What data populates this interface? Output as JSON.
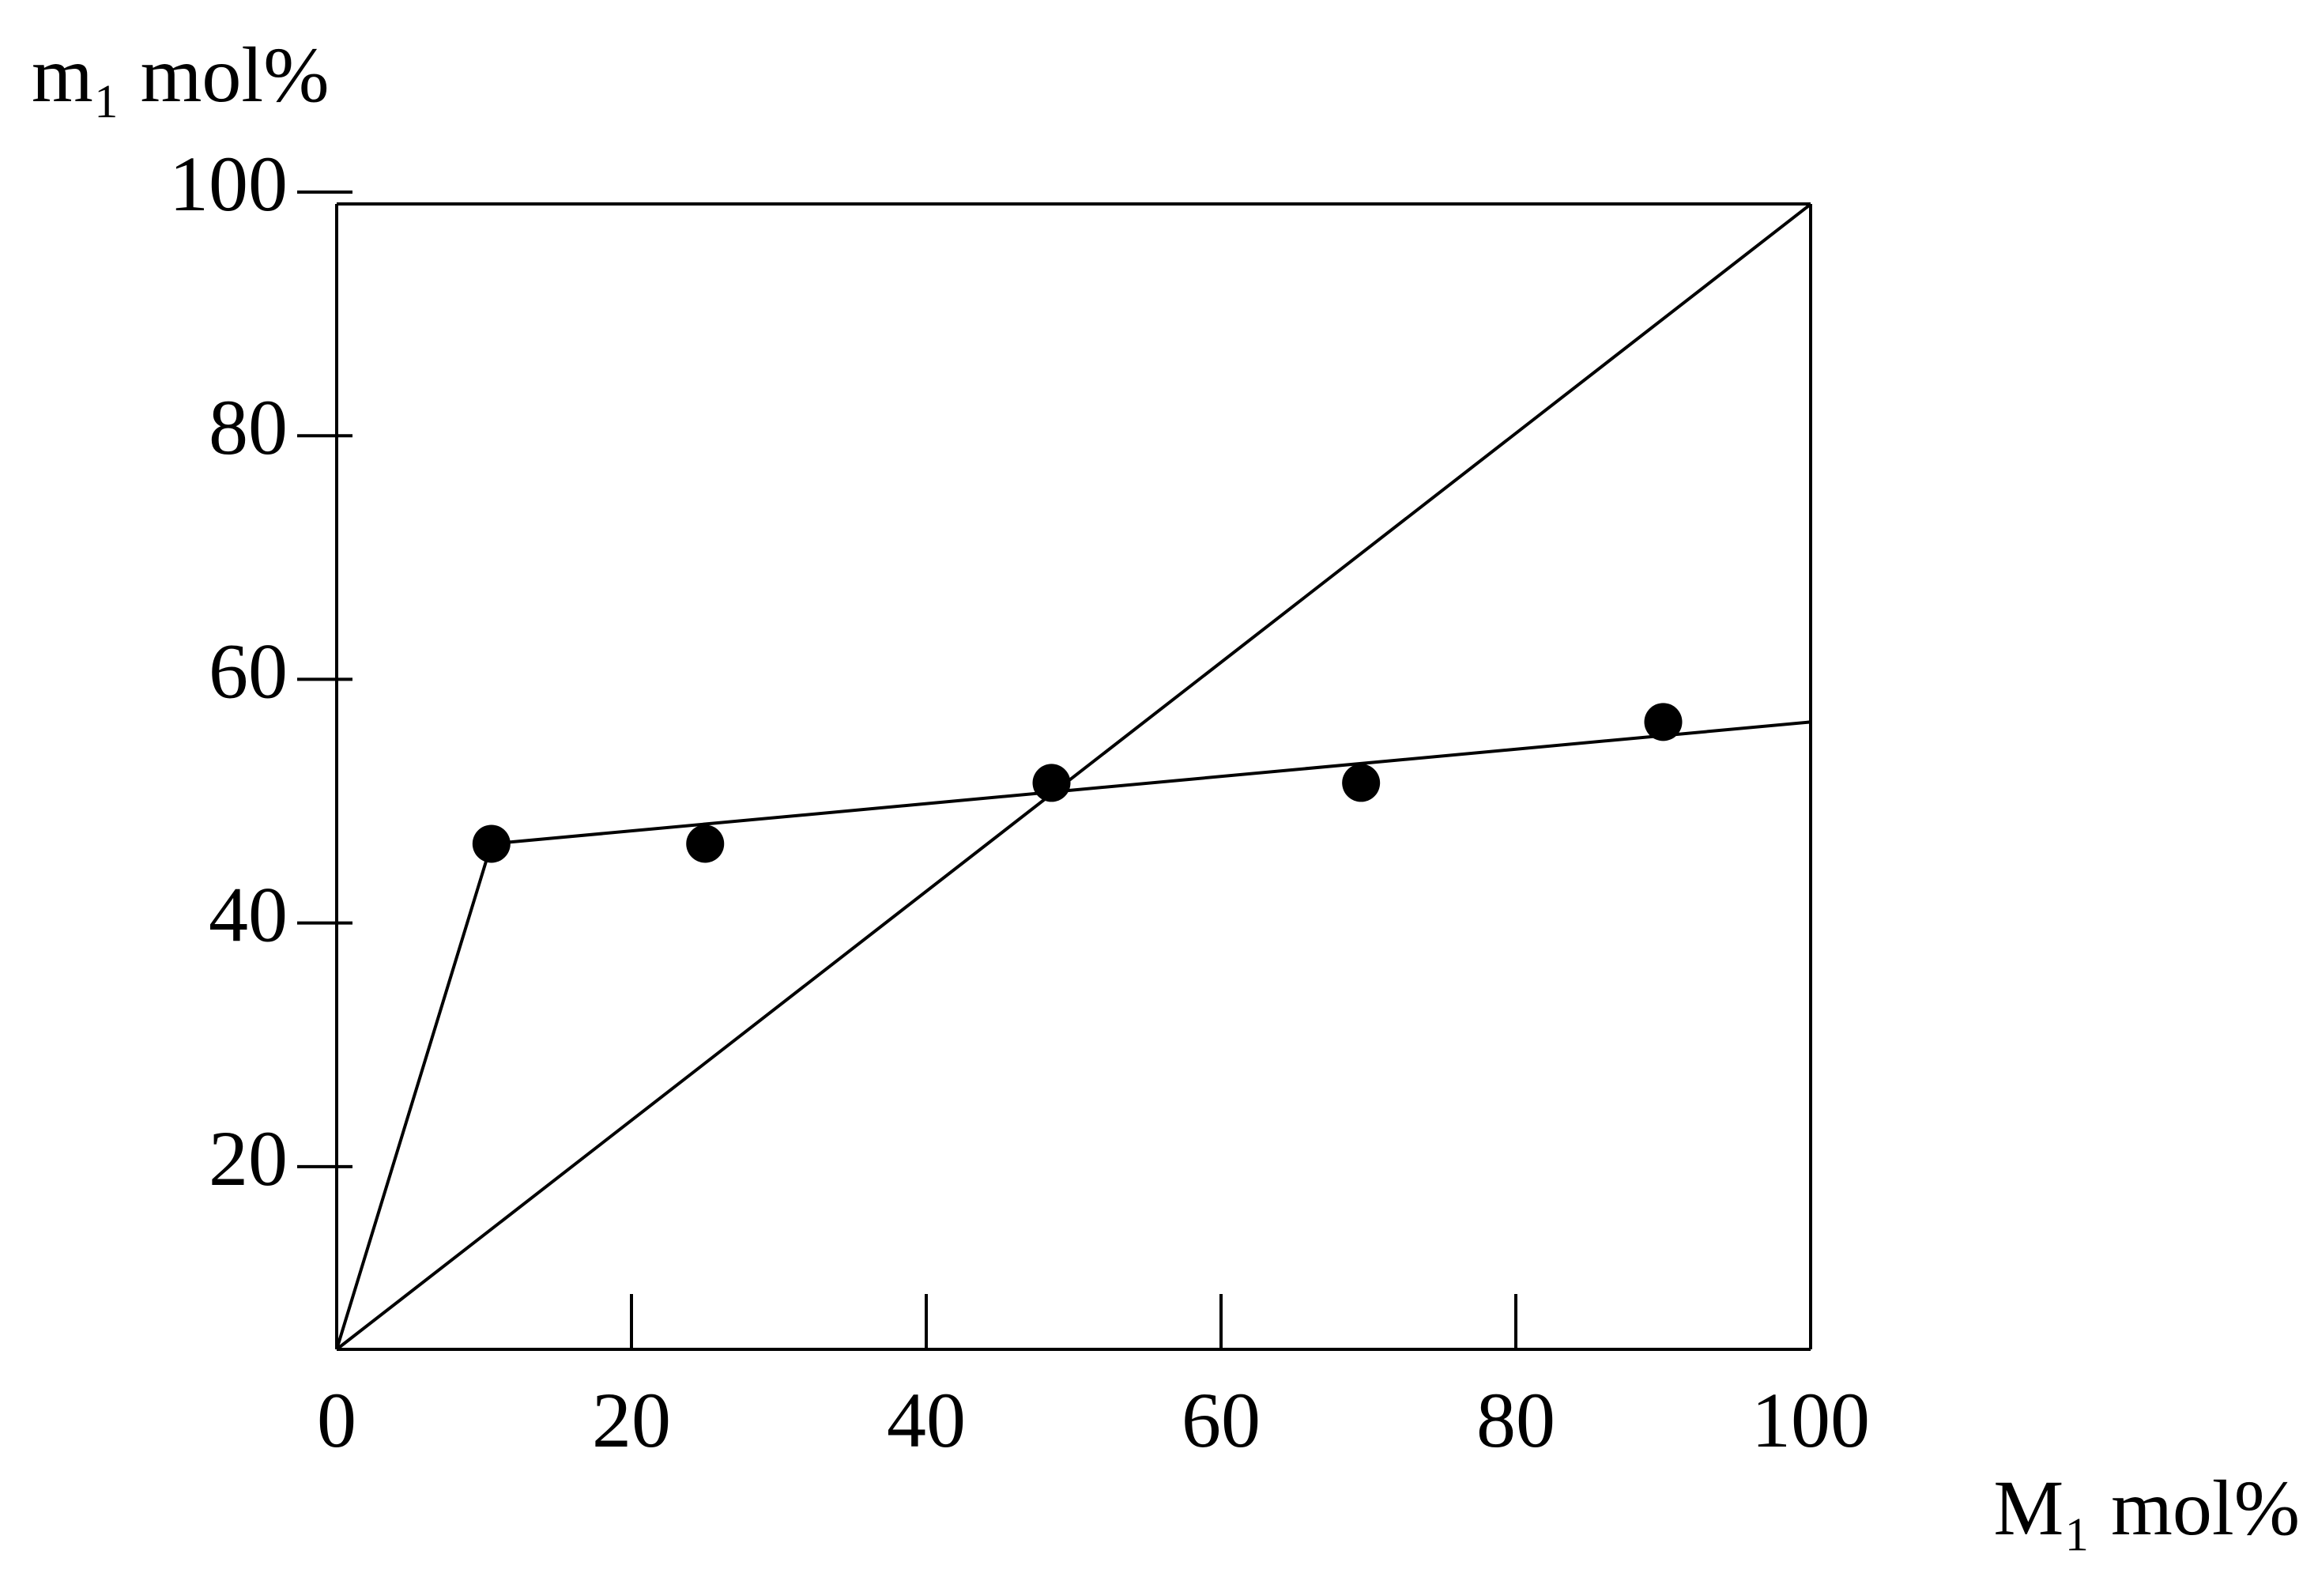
{
  "chart_data": {
    "type": "scatter",
    "y_label": "m₁ mol%",
    "x_label": "M₁ mol%",
    "xlim": [
      0,
      100
    ],
    "ylim": [
      5,
      100
    ],
    "xticks": [
      0,
      20,
      40,
      60,
      80,
      100
    ],
    "yticks": [
      20,
      40,
      60,
      80,
      100
    ],
    "series": [
      {
        "type": "scatter",
        "color": "#000000",
        "x": [
          10.5,
          25,
          48.5,
          69.5,
          90
        ],
        "values": [
          46.5,
          46.5,
          51.5,
          51.5,
          56.5
        ]
      },
      {
        "type": "line",
        "color": "#000000",
        "x": [
          0,
          10.5,
          100
        ],
        "values": [
          5,
          46.5,
          56.5
        ]
      },
      {
        "type": "line",
        "color": "#000000",
        "x": [
          0,
          100
        ],
        "values": [
          5,
          99
        ]
      }
    ]
  }
}
